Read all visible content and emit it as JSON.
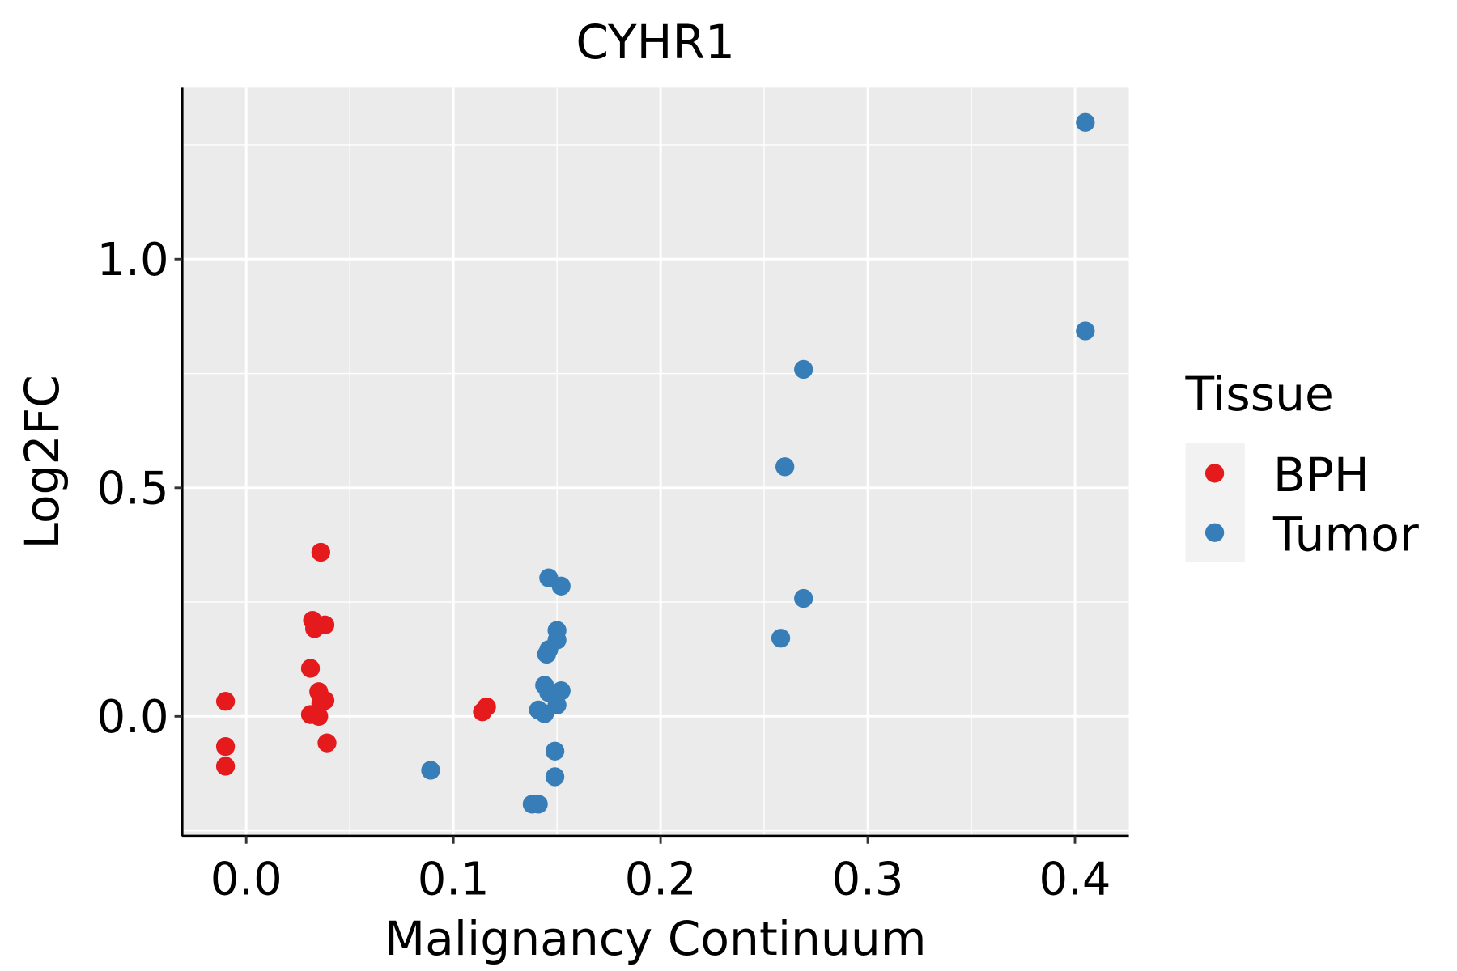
{
  "chart_data": {
    "type": "scatter",
    "title": "CYHR1",
    "xlabel": "Malignancy Continuum",
    "ylabel": "Log2FC",
    "xlim": [
      -0.031,
      0.426
    ],
    "ylim": [
      -0.262,
      1.375
    ],
    "x_ticks": [
      0.0,
      0.1,
      0.2,
      0.3,
      0.4
    ],
    "x_tick_labels": [
      "0.0",
      "0.1",
      "0.2",
      "0.3",
      "0.4"
    ],
    "y_ticks": [
      0.0,
      0.5,
      1.0
    ],
    "y_tick_labels": [
      "0.0",
      "0.5",
      "1.0"
    ],
    "x_minor": [
      0.05,
      0.15,
      0.25,
      0.35
    ],
    "y_minor": [
      -0.25,
      0.25,
      0.75,
      1.25
    ],
    "grid": true,
    "legend": {
      "title": "Tissue",
      "position": "right"
    },
    "series": [
      {
        "name": "BPH",
        "color": "#E41A1C",
        "points": [
          [
            -0.01,
            0.033
          ],
          [
            -0.01,
            -0.066
          ],
          [
            -0.01,
            -0.109
          ],
          [
            0.036,
            0.359
          ],
          [
            0.032,
            0.21
          ],
          [
            0.033,
            0.192
          ],
          [
            0.038,
            0.2
          ],
          [
            0.031,
            0.105
          ],
          [
            0.035,
            0.054
          ],
          [
            0.038,
            0.035
          ],
          [
            0.036,
            0.029
          ],
          [
            0.031,
            0.004
          ],
          [
            0.035,
            0.0
          ],
          [
            0.039,
            -0.058
          ],
          [
            0.116,
            0.021
          ],
          [
            0.114,
            0.01
          ]
        ]
      },
      {
        "name": "Tumor",
        "color": "#377EB8",
        "points": [
          [
            0.405,
            1.299
          ],
          [
            0.405,
            0.843
          ],
          [
            0.269,
            0.759
          ],
          [
            0.26,
            0.546
          ],
          [
            0.269,
            0.258
          ],
          [
            0.258,
            0.171
          ],
          [
            0.146,
            0.303
          ],
          [
            0.152,
            0.285
          ],
          [
            0.15,
            0.188
          ],
          [
            0.15,
            0.167
          ],
          [
            0.146,
            0.146
          ],
          [
            0.145,
            0.136
          ],
          [
            0.144,
            0.068
          ],
          [
            0.146,
            0.052
          ],
          [
            0.152,
            0.056
          ],
          [
            0.15,
            0.025
          ],
          [
            0.141,
            0.014
          ],
          [
            0.144,
            0.006
          ],
          [
            0.149,
            -0.076
          ],
          [
            0.149,
            -0.132
          ],
          [
            0.089,
            -0.118
          ],
          [
            0.138,
            -0.192
          ],
          [
            0.141,
            -0.192
          ]
        ]
      }
    ]
  }
}
